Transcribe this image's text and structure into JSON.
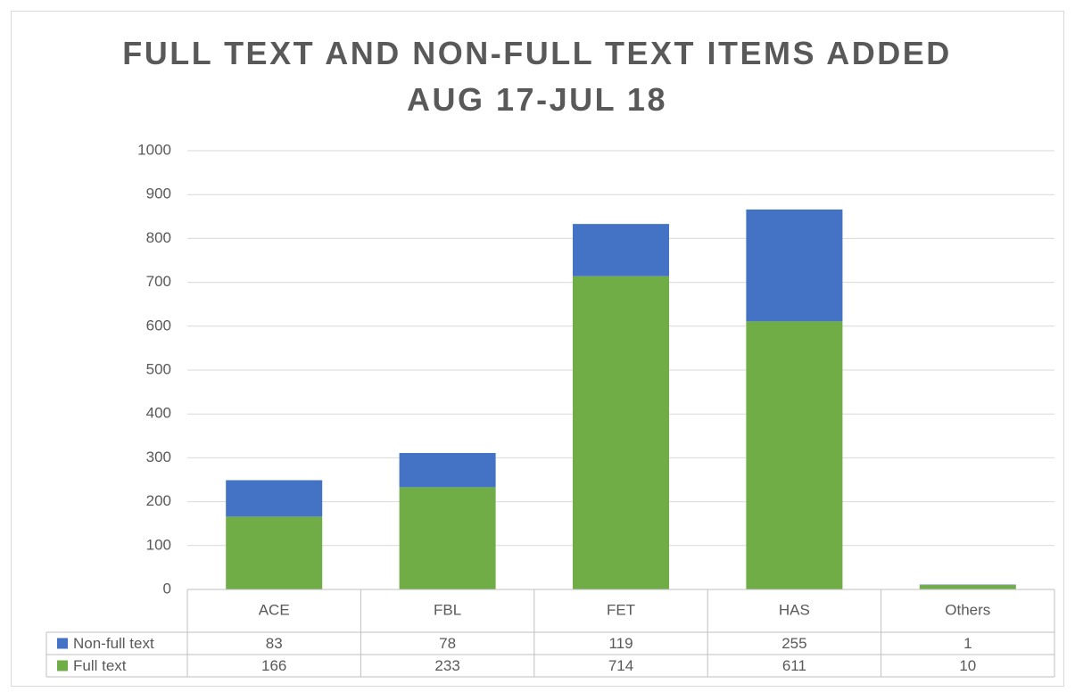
{
  "chart_data": {
    "type": "bar",
    "stacked": true,
    "title": "FULL TEXT AND NON-FULL TEXT ITEMS ADDED AUG 17-JUL 18",
    "categories": [
      "ACE",
      "FBL",
      "FET",
      "HAS",
      "Others"
    ],
    "series": [
      {
        "name": "Non-full text",
        "color": "#4472c4",
        "values": [
          83,
          78,
          119,
          255,
          1
        ]
      },
      {
        "name": "Full text",
        "color": "#70ad47",
        "values": [
          166,
          233,
          714,
          611,
          10
        ]
      }
    ],
    "ylim": [
      0,
      1000
    ],
    "yticks": [
      0,
      100,
      200,
      300,
      400,
      500,
      600,
      700,
      800,
      900,
      1000
    ],
    "grid": true,
    "legend": "table"
  }
}
